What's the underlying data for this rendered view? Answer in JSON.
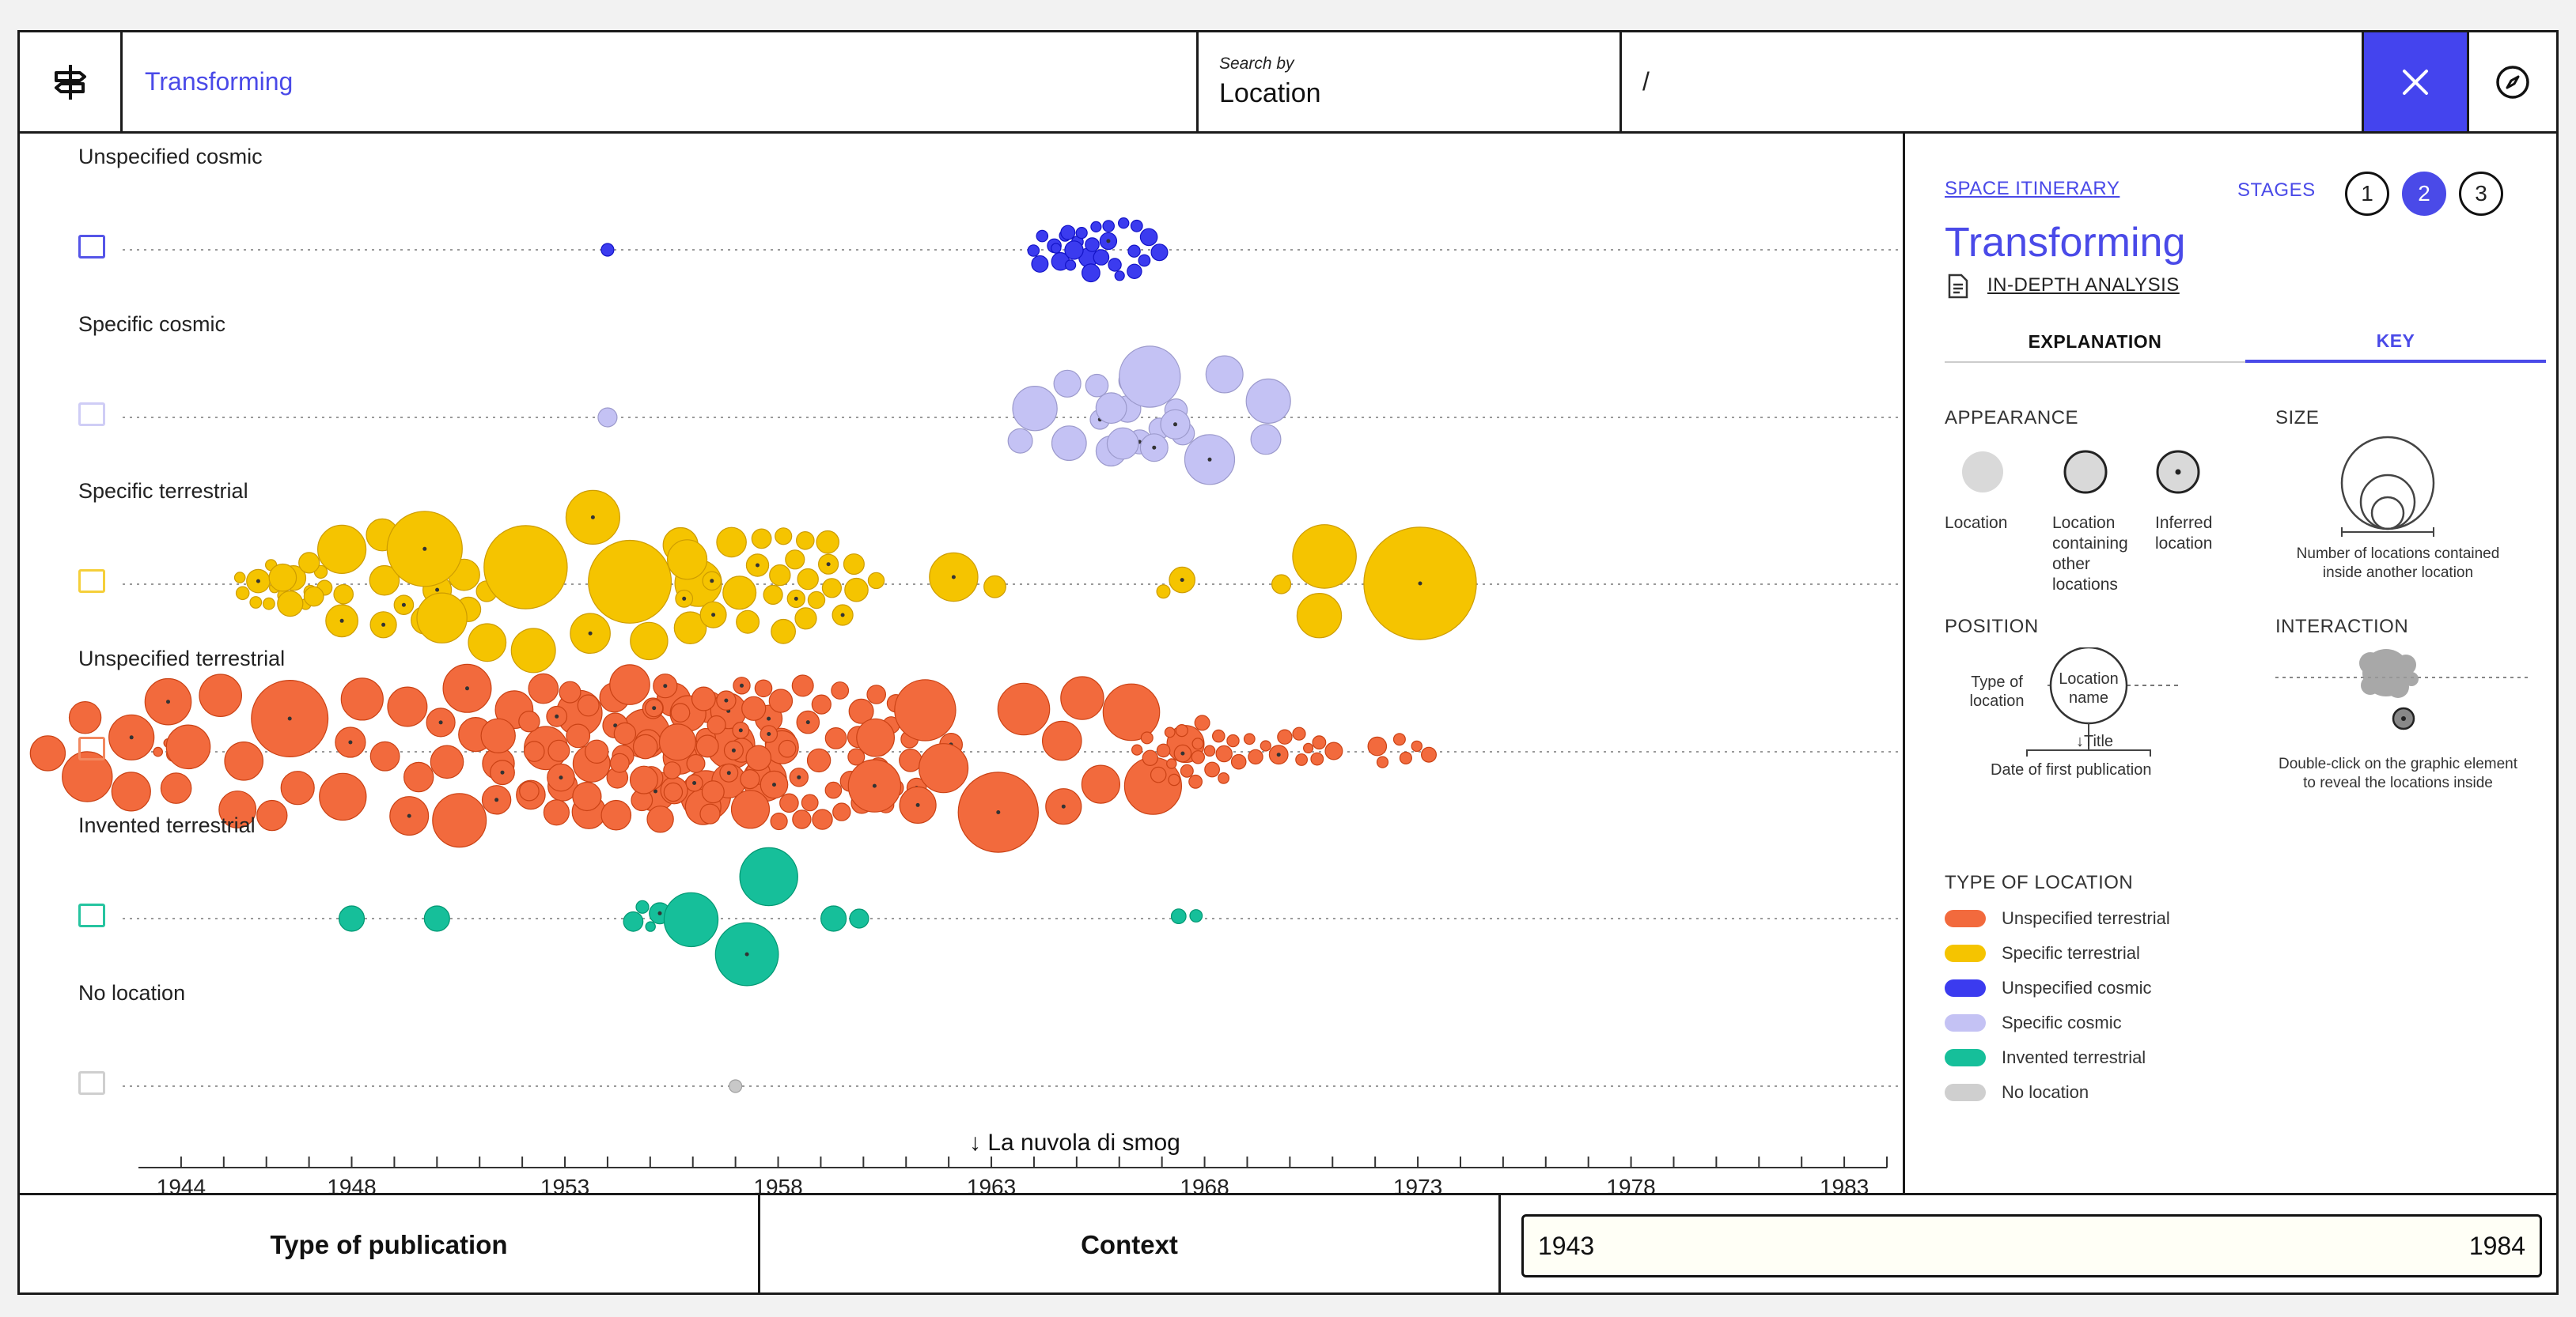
{
  "topbar": {
    "query": "Transforming",
    "search_by_label": "Search by",
    "search_by_value": "Location",
    "path": "/"
  },
  "chart_data": {
    "type": "scatter",
    "title": "Space itinerary",
    "xlabel": "Date of first publication",
    "xlim": [
      1943,
      1984
    ],
    "x_ticks": [
      1944,
      1948,
      1953,
      1958,
      1963,
      1968,
      1973,
      1978,
      1983
    ],
    "rows": [
      "Unspecified cosmic",
      "Specific cosmic",
      "Specific terrestrial",
      "Unspecified terrestrial",
      "Invented terrestrial",
      "No location"
    ],
    "row_colors": [
      "#3b3bef",
      "#c4c2f4",
      "#f5c400",
      "#f26a3d",
      "#16bf9a",
      "#c8c8c8"
    ],
    "annotation": "↓ La nuvola di smog",
    "series": [
      {
        "name": "Unspecified cosmic",
        "clusters": [
          [
            1954,
            1,
            2
          ],
          [
            1964.6,
            8,
            3
          ],
          [
            1965.8,
            20,
            3
          ]
        ]
      },
      {
        "name": "Specific cosmic",
        "clusters": [
          [
            1954,
            1,
            3
          ],
          [
            1965.5,
            14,
            6
          ],
          [
            1967.5,
            9,
            8
          ]
        ]
      },
      {
        "name": "Specific terrestrial",
        "clusters": [
          [
            1946.4,
            16,
            3
          ],
          [
            1948.8,
            18,
            6
          ],
          [
            1953,
            18,
            10
          ],
          [
            1957.9,
            26,
            5
          ],
          [
            1962.5,
            2,
            6
          ],
          [
            1967.4,
            3,
            3
          ],
          [
            1969.8,
            1,
            3
          ],
          [
            1972.5,
            3,
            14
          ]
        ]
      },
      {
        "name": "Unspecified terrestrial",
        "clusters": [
          [
            1944,
            8,
            2
          ],
          [
            1949.5,
            110,
            9
          ],
          [
            1954.7,
            40,
            6
          ],
          [
            1958.2,
            68,
            5
          ],
          [
            1963.7,
            14,
            11
          ],
          [
            1967.8,
            24,
            3
          ],
          [
            1970.2,
            9,
            3
          ],
          [
            1972.6,
            6,
            3
          ]
        ]
      },
      {
        "name": "Invented terrestrial",
        "clusters": [
          [
            1948,
            1,
            4
          ],
          [
            1950,
            1,
            4
          ],
          [
            1955,
            4,
            3
          ],
          [
            1957.5,
            3,
            14
          ],
          [
            1959.3,
            1,
            4
          ],
          [
            1959.9,
            1,
            3
          ],
          [
            1967.6,
            2,
            2
          ]
        ]
      },
      {
        "name": "No location",
        "clusters": [
          [
            1957,
            1,
            2
          ]
        ]
      }
    ]
  },
  "panel": {
    "itinerary_link": "SPACE ITINERARY",
    "stages_label": "STAGES",
    "stages": [
      "1",
      "2",
      "3"
    ],
    "active_stage": "2",
    "title": "Transforming",
    "analysis_link": "IN-DEPTH ANALYSIS",
    "tabs": [
      "EXPLANATION",
      "KEY"
    ],
    "appearance": {
      "heading": "APPEARANCE",
      "items": [
        "Location",
        "Location containing other locations",
        "Inferred location"
      ]
    },
    "size": {
      "heading": "SIZE",
      "caption": "Number of locations contained inside another location"
    },
    "position": {
      "heading": "POSITION",
      "type_label": "Type of location",
      "name_label": "Location name",
      "title_label": "↓Title",
      "date_label": "Date of first publication"
    },
    "interaction": {
      "heading": "INTERACTION",
      "caption": "Double-click on the graphic element to reveal the locations inside"
    },
    "legend": {
      "heading": "TYPE OF LOCATION",
      "items": [
        {
          "label": "Unspecified terrestrial",
          "color": "#f26a3d"
        },
        {
          "label": "Specific terrestrial",
          "color": "#f5c400"
        },
        {
          "label": "Unspecified cosmic",
          "color": "#3b3bef"
        },
        {
          "label": "Specific cosmic",
          "color": "#c4c2f4"
        },
        {
          "label": "Invented terrestrial",
          "color": "#16bf9a"
        },
        {
          "label": "No location",
          "color": "#cfcfcf"
        }
      ]
    }
  },
  "bottombar": {
    "type_label": "Type of publication",
    "context_label": "Context",
    "range_start": "1943",
    "range_end": "1984"
  }
}
